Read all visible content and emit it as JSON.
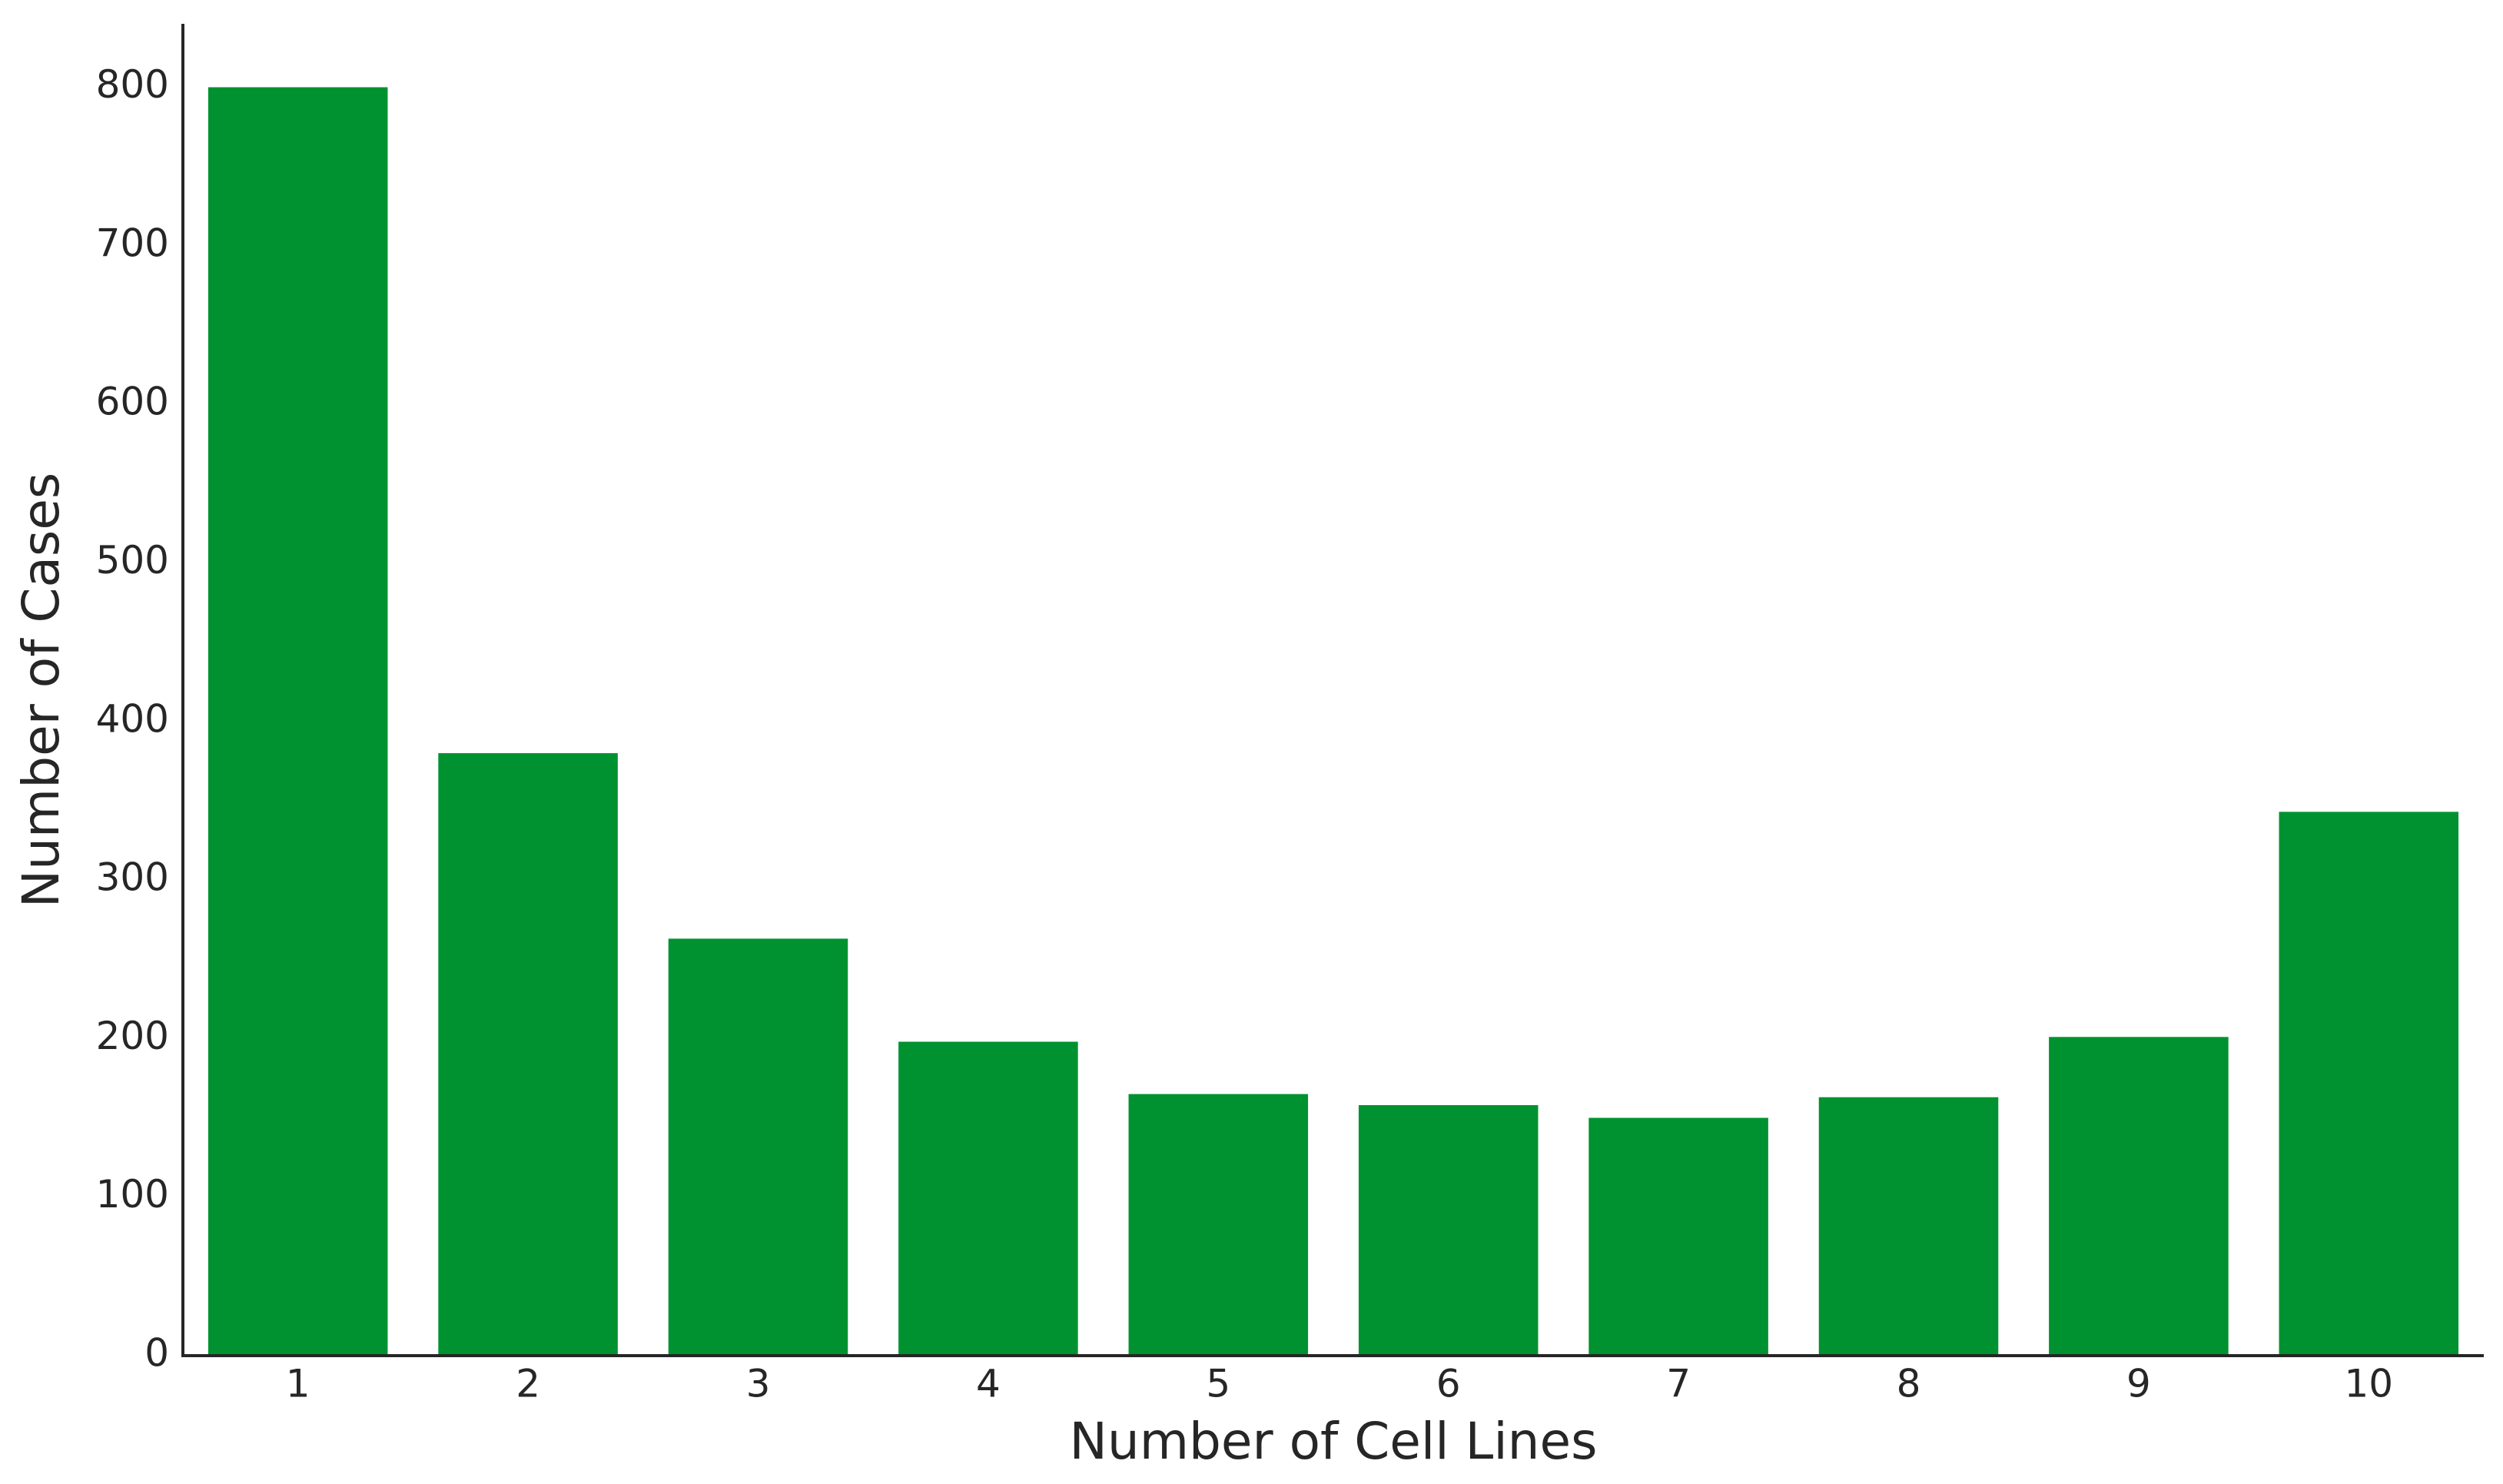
{
  "chart_data": {
    "type": "bar",
    "x_label": "Number of Cell Lines",
    "y_label": "Number of Cases",
    "categories": [
      "1",
      "2",
      "3",
      "4",
      "5",
      "6",
      "7",
      "8",
      "9",
      "10"
    ],
    "values": [
      800,
      380,
      263,
      198,
      165,
      158,
      150,
      163,
      201,
      343
    ],
    "color": "#009230",
    "ylim": [
      0,
      840
    ],
    "yticks": [
      0,
      100,
      200,
      300,
      400,
      500,
      600,
      700,
      800
    ],
    "grid": false
  }
}
